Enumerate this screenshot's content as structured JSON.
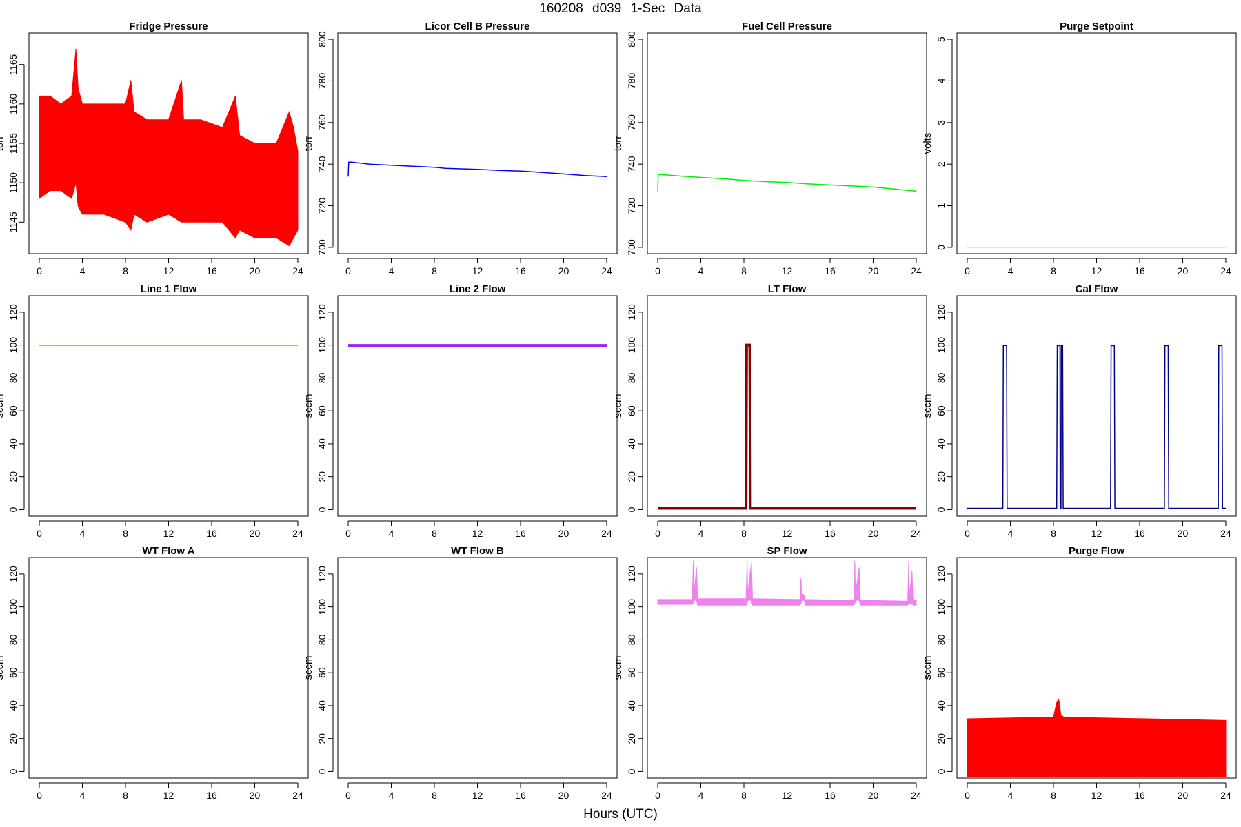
{
  "figure": {
    "title": "160208    d039    1-Sec Data",
    "xlabel": "Hours (UTC)"
  },
  "chart_data": [
    {
      "type": "line",
      "title": "Fridge Pressure",
      "ylabel": "torr",
      "xlim": [
        0,
        24
      ],
      "xticks": [
        0,
        4,
        8,
        12,
        16,
        20,
        24
      ],
      "ylim": [
        1141,
        1169
      ],
      "yticks": [
        1145,
        1150,
        1155,
        1160,
        1165
      ],
      "color": "#ff0000",
      "band": true,
      "series": [
        {
          "x": [
            0,
            1,
            2,
            3,
            3.4,
            3.6,
            4,
            6,
            8,
            8.5,
            8.8,
            10,
            12,
            13.2,
            13.4,
            15,
            17,
            18.2,
            18.6,
            20,
            22,
            23.2,
            23.6,
            24
          ],
          "upper": [
            1161,
            1161,
            1160,
            1161,
            1167,
            1162,
            1160,
            1160,
            1160,
            1163,
            1159,
            1158,
            1158,
            1163,
            1158,
            1158,
            1157,
            1161,
            1156,
            1155,
            1155,
            1159,
            1157,
            1154
          ],
          "lower": [
            1148,
            1149,
            1149,
            1148,
            1150,
            1147,
            1146,
            1146,
            1145,
            1144,
            1146,
            1145,
            1146,
            1145,
            1145,
            1145,
            1145,
            1143,
            1144,
            1143,
            1143,
            1142,
            1143,
            1144
          ]
        }
      ]
    },
    {
      "type": "line",
      "title": "Licor Cell B Pressure",
      "ylabel": "torr",
      "xlim": [
        0,
        24
      ],
      "xticks": [
        0,
        4,
        8,
        12,
        16,
        20,
        24
      ],
      "ylim": [
        697,
        803
      ],
      "yticks": [
        700,
        720,
        740,
        760,
        780,
        800
      ],
      "color": "#0000ff",
      "series": [
        {
          "x": [
            0,
            0.05,
            0.3,
            2,
            4,
            6,
            8,
            9,
            10,
            12,
            14,
            16,
            18,
            20,
            22,
            24
          ],
          "y": [
            734,
            741,
            741,
            740,
            739.5,
            739,
            738.5,
            738,
            737.8,
            737.5,
            737,
            736.7,
            736,
            735.3,
            734.5,
            734
          ]
        }
      ]
    },
    {
      "type": "line",
      "title": "Fuel Cell Pressure",
      "ylabel": "torr",
      "xlim": [
        0,
        24
      ],
      "xticks": [
        0,
        4,
        8,
        12,
        16,
        20,
        24
      ],
      "ylim": [
        697,
        803
      ],
      "yticks": [
        700,
        720,
        740,
        760,
        780,
        800
      ],
      "color": "#00ee00",
      "series": [
        {
          "x": [
            0,
            0.05,
            0.3,
            2,
            4,
            6,
            8,
            10,
            12,
            14,
            16,
            18,
            20,
            22,
            24
          ],
          "y": [
            727,
            735,
            735,
            734.3,
            733.6,
            733,
            732.2,
            731.6,
            731.2,
            730.5,
            730,
            729.5,
            729,
            728,
            727
          ]
        }
      ]
    },
    {
      "type": "line",
      "title": "Purge Setpoint",
      "ylabel": "volts",
      "xlim": [
        0,
        24
      ],
      "xticks": [
        0,
        4,
        8,
        12,
        16,
        20,
        24
      ],
      "ylim": [
        -0.15,
        5.15
      ],
      "yticks": [
        0,
        1,
        2,
        3,
        4,
        5
      ],
      "color": "#66ffee",
      "series": [
        {
          "x": [
            0,
            24
          ],
          "y": [
            0,
            0
          ]
        }
      ]
    },
    {
      "type": "line",
      "title": "Line 1 Flow",
      "ylabel": "sccm",
      "xlim": [
        0,
        24
      ],
      "xticks": [
        0,
        4,
        8,
        12,
        16,
        20,
        24
      ],
      "ylim": [
        -4,
        130
      ],
      "yticks": [
        0,
        20,
        40,
        60,
        80,
        100,
        120
      ],
      "color": "#ffa500",
      "series": [
        {
          "x": [
            0,
            24
          ],
          "y": [
            99.7,
            99.7
          ]
        }
      ]
    },
    {
      "type": "line",
      "title": "Line 2 Flow",
      "ylabel": "sccm",
      "xlim": [
        0,
        24
      ],
      "xticks": [
        0,
        4,
        8,
        12,
        16,
        20,
        24
      ],
      "ylim": [
        -4,
        130
      ],
      "yticks": [
        0,
        20,
        40,
        60,
        80,
        100,
        120
      ],
      "color": "#a020f0",
      "thick": true,
      "series": [
        {
          "x": [
            0,
            24
          ],
          "y": [
            99.8,
            99.8
          ]
        }
      ]
    },
    {
      "type": "line",
      "title": "LT Flow",
      "ylabel": "sccm",
      "xlim": [
        0,
        24
      ],
      "xticks": [
        0,
        4,
        8,
        12,
        16,
        20,
        24
      ],
      "ylim": [
        -4,
        130
      ],
      "yticks": [
        0,
        20,
        40,
        60,
        80,
        100,
        120
      ],
      "color": "#8b0000",
      "thick": true,
      "series": [
        {
          "x": [
            0,
            8.2,
            8.25,
            8.55,
            8.6,
            24
          ],
          "y": [
            0.8,
            0.8,
            100,
            100,
            0.8,
            0.8
          ]
        }
      ]
    },
    {
      "type": "line",
      "title": "Cal Flow",
      "ylabel": "sccm",
      "xlim": [
        0,
        24
      ],
      "xticks": [
        0,
        4,
        8,
        12,
        16,
        20,
        24
      ],
      "ylim": [
        -4,
        130
      ],
      "yticks": [
        0,
        20,
        40,
        60,
        80,
        100,
        120
      ],
      "color": "#00008b",
      "series": [
        {
          "x": [
            0,
            3.3,
            3.35,
            3.65,
            3.7,
            8.3,
            8.35,
            8.6,
            8.62,
            8.7,
            8.72,
            8.85,
            8.9,
            13.3,
            13.35,
            13.65,
            13.7,
            18.3,
            18.35,
            18.65,
            18.7,
            23.3,
            23.35,
            23.65,
            23.7,
            24
          ],
          "y": [
            0.8,
            0.8,
            99.7,
            99.7,
            0.8,
            0.8,
            99.7,
            99.7,
            0.8,
            0.8,
            99.7,
            99.7,
            0.8,
            0.8,
            99.7,
            99.7,
            0.8,
            0.8,
            99.7,
            99.7,
            0.8,
            0.8,
            99.7,
            99.7,
            0.8,
            0.8
          ]
        }
      ]
    },
    {
      "type": "line",
      "title": "WT Flow A",
      "ylabel": "sccm",
      "xlim": [
        0,
        24
      ],
      "xticks": [
        0,
        4,
        8,
        12,
        16,
        20,
        24
      ],
      "ylim": [
        -4,
        130
      ],
      "yticks": [
        0,
        20,
        40,
        60,
        80,
        100,
        120
      ],
      "color": "#000000",
      "series": []
    },
    {
      "type": "line",
      "title": "WT Flow B",
      "ylabel": "sccm",
      "xlim": [
        0,
        24
      ],
      "xticks": [
        0,
        4,
        8,
        12,
        16,
        20,
        24
      ],
      "ylim": [
        -4,
        130
      ],
      "yticks": [
        0,
        20,
        40,
        60,
        80,
        100,
        120
      ],
      "color": "#000000",
      "series": []
    },
    {
      "type": "line",
      "title": "SP Flow",
      "ylabel": "sccm",
      "xlim": [
        0,
        24
      ],
      "xticks": [
        0,
        4,
        8,
        12,
        16,
        20,
        24
      ],
      "ylim": [
        -4,
        130
      ],
      "yticks": [
        0,
        20,
        40,
        60,
        80,
        100,
        120
      ],
      "color": "#ee82ee",
      "band": true,
      "series": [
        {
          "x": [
            0,
            3.2,
            3.3,
            3.35,
            3.6,
            3.7,
            8.2,
            8.3,
            8.35,
            8.7,
            8.8,
            13.2,
            13.3,
            13.35,
            13.6,
            13.7,
            18.2,
            18.3,
            18.35,
            18.7,
            18.8,
            23.2,
            23.3,
            23.35,
            23.6,
            23.7,
            24
          ],
          "upper": [
            104.5,
            104.5,
            128,
            107,
            124,
            105,
            105,
            128,
            108,
            127,
            105,
            104.5,
            118,
            108,
            107,
            104.5,
            104,
            128,
            107,
            124,
            104,
            103.5,
            128,
            106,
            122,
            104,
            104
          ],
          "lower": [
            101.5,
            101.5,
            102,
            104,
            104,
            101,
            101,
            102,
            104,
            104,
            101,
            101,
            102,
            104,
            104,
            101,
            101,
            102,
            104,
            104,
            101,
            101,
            102,
            102,
            102,
            101,
            101
          ]
        }
      ]
    },
    {
      "type": "line",
      "title": "Purge Flow",
      "ylabel": "sccm",
      "xlim": [
        0,
        24
      ],
      "xticks": [
        0,
        4,
        8,
        12,
        16,
        20,
        24
      ],
      "ylim": [
        -4,
        130
      ],
      "yticks": [
        0,
        20,
        40,
        60,
        80,
        100,
        120
      ],
      "color": "#ff0000",
      "band": true,
      "series": [
        {
          "x": [
            0,
            8,
            8.3,
            8.5,
            8.7,
            9,
            24
          ],
          "upper": [
            32,
            33,
            42,
            44,
            34,
            33,
            31
          ],
          "lower": [
            -3,
            -3,
            -3,
            -3,
            -3,
            -3,
            -3
          ]
        }
      ]
    }
  ]
}
